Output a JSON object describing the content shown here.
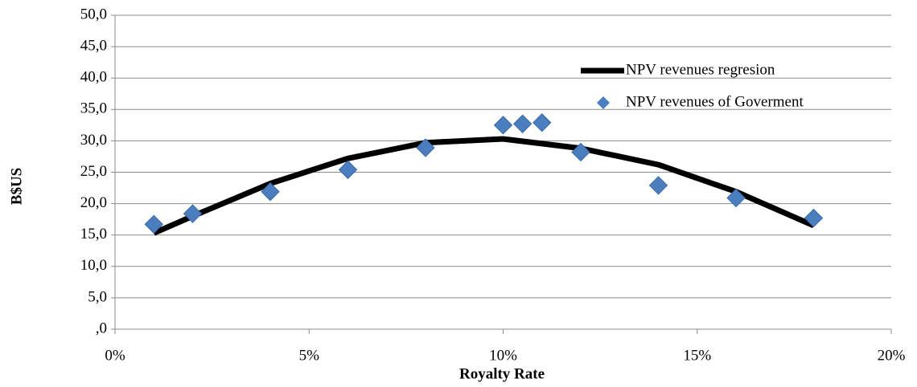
{
  "chart_data": {
    "type": "scatter",
    "x_label": "Royalty Rate",
    "y_label": "B$US",
    "xlim": [
      0,
      20
    ],
    "ylim": [
      0,
      50
    ],
    "xticks": [
      {
        "value": 0,
        "label": "0%"
      },
      {
        "value": 5,
        "label": "5%"
      },
      {
        "value": 10,
        "label": "10%"
      },
      {
        "value": 15,
        "label": "15%"
      },
      {
        "value": 20,
        "label": "20%"
      }
    ],
    "yticks": [
      {
        "value": 0,
        "label": ",0"
      },
      {
        "value": 5,
        "label": "5,0"
      },
      {
        "value": 10,
        "label": "10,0"
      },
      {
        "value": 15,
        "label": "15,0"
      },
      {
        "value": 20,
        "label": "20,0"
      },
      {
        "value": 25,
        "label": "25,0"
      },
      {
        "value": 30,
        "label": "30,0"
      },
      {
        "value": 35,
        "label": "35,0"
      },
      {
        "value": 40,
        "label": "40,0"
      },
      {
        "value": 45,
        "label": "45,0"
      },
      {
        "value": 50,
        "label": "50,0"
      }
    ],
    "grid": true,
    "legend": "upper-right",
    "series": [
      {
        "name": "NPV revenues regresion",
        "type": "line",
        "color": "#000000",
        "x": [
          1,
          2,
          4,
          6,
          8,
          10,
          12,
          14,
          16,
          18
        ],
        "values": [
          15.3,
          18.0,
          23.2,
          27.2,
          29.7,
          30.3,
          28.8,
          26.2,
          21.9,
          16.5
        ]
      },
      {
        "name": "NPV revenues of Goverment",
        "type": "scatter",
        "color": "#4a7ebf",
        "x": [
          1,
          2,
          4,
          6,
          8,
          10,
          10.5,
          11,
          12,
          14,
          16,
          18
        ],
        "values": [
          16.7,
          18.4,
          21.9,
          25.4,
          28.9,
          32.5,
          32.7,
          32.9,
          28.2,
          22.9,
          20.9,
          17.7
        ]
      }
    ]
  }
}
